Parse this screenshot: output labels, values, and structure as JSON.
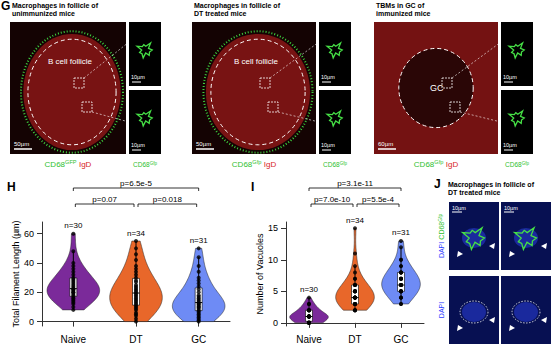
{
  "chart_data": [
    {
      "type": "violin",
      "title": "H",
      "categories": [
        "Naive",
        "DT",
        "GC"
      ],
      "y_label": "Total Filament Length (µm)",
      "colors": [
        "#7b2a9a",
        "#e8672a",
        "#6e8bf5"
      ],
      "values": [
        [
          8,
          10,
          12,
          13,
          14,
          15,
          16,
          17,
          18,
          19,
          20,
          20,
          21,
          22,
          22,
          23,
          24,
          25,
          26,
          27,
          28,
          29,
          30,
          32,
          34,
          36,
          38,
          40,
          48,
          60
        ],
        [
          0,
          2,
          4,
          5,
          6,
          8,
          9,
          10,
          11,
          12,
          13,
          14,
          15,
          16,
          17,
          18,
          19,
          20,
          21,
          22,
          23,
          24,
          25,
          27,
          28,
          30,
          32,
          34,
          36,
          38,
          42,
          46,
          50,
          55
        ],
        [
          0,
          1,
          2,
          3,
          4,
          5,
          6,
          7,
          8,
          9,
          10,
          10,
          11,
          12,
          12,
          13,
          14,
          15,
          16,
          17,
          18,
          20,
          22,
          24,
          26,
          28,
          30,
          34,
          38,
          44,
          50
        ]
      ],
      "n_labels": [
        "n=30",
        "n=34",
        "n=31"
      ],
      "comparisons": [
        {
          "groups": [
            "Naive",
            "DT"
          ],
          "label": "p=0.07"
        },
        {
          "groups": [
            "DT",
            "GC"
          ],
          "label": "p=0.018"
        },
        {
          "groups": [
            "Naive",
            "GC"
          ],
          "label": "p=6.5e-5"
        }
      ],
      "ylim": [
        -3,
        68
      ],
      "yticks": [
        0,
        20,
        40,
        60
      ],
      "grid": false
    },
    {
      "type": "violin",
      "title": "I",
      "categories": [
        "Naive",
        "DT",
        "GC"
      ],
      "y_label": "Number of Vacuoles",
      "colors": [
        "#7b2a9a",
        "#e8672a",
        "#6e8bf5"
      ],
      "values": [
        [
          0,
          0,
          0,
          0,
          0,
          0,
          0,
          0,
          1,
          1,
          1,
          1,
          1,
          1,
          1,
          1,
          1,
          1,
          1,
          1,
          2,
          2,
          2,
          2,
          2,
          2,
          3,
          3,
          3,
          4
        ],
        [
          2,
          2,
          2,
          2,
          3,
          3,
          3,
          3,
          3,
          3,
          4,
          4,
          4,
          4,
          4,
          4,
          4,
          4,
          5,
          5,
          5,
          5,
          5,
          5,
          6,
          6,
          6,
          6,
          7,
          7,
          8,
          9,
          11,
          15
        ],
        [
          3,
          3,
          4,
          4,
          4,
          5,
          5,
          5,
          5,
          5,
          6,
          6,
          6,
          6,
          6,
          6,
          7,
          7,
          7,
          7,
          7,
          8,
          8,
          8,
          8,
          9,
          9,
          10,
          10,
          12,
          13
        ]
      ],
      "n_labels": [
        "n=30",
        "n=34",
        "n=31"
      ],
      "comparisons": [
        {
          "groups": [
            "Naive",
            "DT"
          ],
          "label": "p=7.0e-10"
        },
        {
          "groups": [
            "DT",
            "GC"
          ],
          "label": "p=5.5e-4"
        },
        {
          "groups": [
            "Naive",
            "GC"
          ],
          "label": "p=3.1e-11"
        }
      ],
      "ylim": [
        -0.5,
        16
      ],
      "yticks": [
        0,
        5,
        10,
        15
      ],
      "grid": false
    }
  ],
  "images": {
    "G": {
      "label": "G",
      "panels": [
        {
          "title": [
            "Macrophages in follicle of",
            "unimmunized mice"
          ],
          "region": "B cell follicle",
          "scale": "50µm",
          "inset_scale": "10µm",
          "stain": [
            {
              "text": "CD68",
              "color": "#2fbf2f"
            },
            {
              "text": "GFP",
              "color": "#2fbf2f",
              "sup": true
            },
            {
              "text": "IgD",
              "color": "#d81e1e"
            }
          ],
          "inset_stain": [
            {
              "text": "CD68",
              "color": "#2fbf2f"
            },
            {
              "text": "Gfp",
              "color": "#2fbf2f",
              "sup": true
            }
          ]
        },
        {
          "title": [
            "Macrophages in follicle of",
            "DT treated mice"
          ],
          "region": "B cell follicle",
          "scale": "50µm",
          "inset_scale": "10µm",
          "stain": [
            {
              "text": "CD68",
              "color": "#2fbf2f"
            },
            {
              "text": "Gfp",
              "color": "#2fbf2f",
              "sup": true
            },
            {
              "text": "IgD",
              "color": "#d81e1e"
            }
          ],
          "inset_stain": [
            {
              "text": "CD68",
              "color": "#2fbf2f"
            },
            {
              "text": "Gfp",
              "color": "#2fbf2f",
              "sup": true
            }
          ]
        },
        {
          "title": [
            "TBMs in GC of",
            "immunized mice"
          ],
          "region": "GC",
          "scale": "60µm",
          "inset_scale": "10µm",
          "stain": [
            {
              "text": "CD68",
              "color": "#2fbf2f"
            },
            {
              "text": "Gfp",
              "color": "#2fbf2f",
              "sup": true
            },
            {
              "text": "IgD",
              "color": "#d81e1e"
            }
          ],
          "inset_stain": [
            {
              "text": "CD68",
              "color": "#2fbf2f"
            },
            {
              "text": "Gfp",
              "color": "#2fbf2f",
              "sup": true
            }
          ]
        }
      ]
    },
    "J": {
      "label": "J",
      "title": [
        "Macrophages in follicle of",
        "DT treated mice"
      ],
      "scale": "10µm",
      "rows": [
        [
          {
            "text": "DAPI",
            "color": "#2b3cff"
          },
          {
            "text": "CD68",
            "color": "#2fbf2f"
          },
          {
            "text": "Gfp",
            "color": "#2fbf2f",
            "sup": true
          }
        ],
        [
          {
            "text": "DAPI",
            "color": "#2b3cff"
          }
        ]
      ]
    }
  }
}
